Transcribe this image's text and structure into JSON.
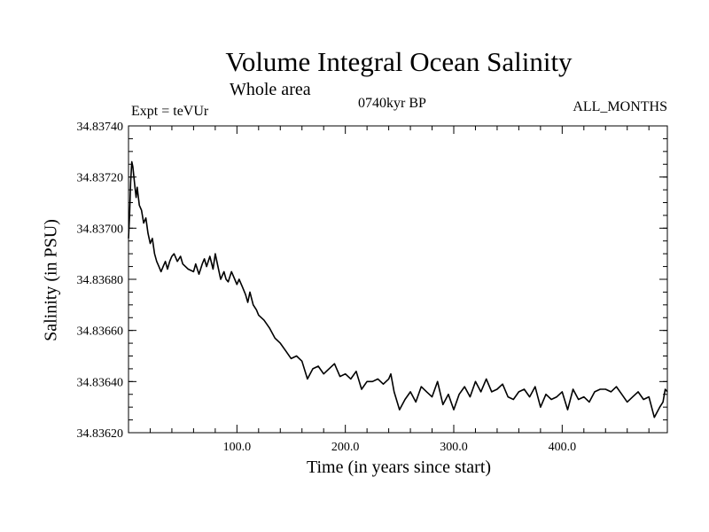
{
  "chart_data": {
    "type": "line",
    "title": "Volume Integral Ocean Salinity",
    "subtitle": "Whole area",
    "annotations": {
      "left": "Expt = teVUr",
      "center": "0740kyr BP",
      "right": "ALL_MONTHS"
    },
    "xlabel": "Time (in years since start)",
    "ylabel": "Salinity (in PSU)",
    "xlim": [
      0,
      497
    ],
    "ylim": [
      34.8362,
      34.8374
    ],
    "x_ticks": [
      {
        "value": 100,
        "label": "100.0"
      },
      {
        "value": 200,
        "label": "200.0"
      },
      {
        "value": 300,
        "label": "300.0"
      },
      {
        "value": 400,
        "label": "400.0"
      }
    ],
    "y_ticks": [
      {
        "value": 34.8362,
        "label": "34.83620"
      },
      {
        "value": 34.8364,
        "label": "34.83640"
      },
      {
        "value": 34.8366,
        "label": "34.83660"
      },
      {
        "value": 34.8368,
        "label": "34.83680"
      },
      {
        "value": 34.837,
        "label": "34.83700"
      },
      {
        "value": 34.8372,
        "label": "34.83720"
      },
      {
        "value": 34.8374,
        "label": "34.83740"
      }
    ],
    "grid": false,
    "line_color": "#000000",
    "series": [
      {
        "x": [
          0,
          1,
          2,
          3,
          4,
          5,
          6,
          7,
          8,
          10,
          12,
          14,
          16,
          18,
          20,
          22,
          24,
          26,
          28,
          30,
          32,
          34,
          36,
          38,
          40,
          42,
          45,
          48,
          50,
          55,
          60,
          62,
          65,
          68,
          70,
          72,
          75,
          78,
          80,
          82,
          85,
          88,
          90,
          92,
          95,
          98,
          100,
          102,
          105,
          108,
          110,
          112,
          115,
          118,
          120,
          125,
          130,
          135,
          140,
          145,
          150,
          155,
          160,
          165,
          170,
          175,
          180,
          185,
          190,
          195,
          200,
          205,
          210,
          215,
          220,
          225,
          230,
          235,
          240,
          242,
          245,
          250,
          255,
          260,
          265,
          270,
          275,
          280,
          285,
          290,
          295,
          300,
          305,
          310,
          315,
          320,
          325,
          330,
          335,
          340,
          345,
          350,
          355,
          360,
          365,
          370,
          375,
          380,
          385,
          390,
          395,
          400,
          405,
          410,
          415,
          420,
          425,
          430,
          435,
          440,
          445,
          450,
          455,
          460,
          465,
          470,
          475,
          480,
          485,
          490,
          493,
          495,
          497
        ],
        "y": [
          34.83696,
          34.83705,
          34.83718,
          34.83726,
          34.83724,
          34.8372,
          34.83716,
          34.83712,
          34.83716,
          34.83709,
          34.83707,
          34.83702,
          34.83704,
          34.83698,
          34.83694,
          34.83696,
          34.8369,
          34.83687,
          34.83685,
          34.83683,
          34.83685,
          34.83687,
          34.83684,
          34.83687,
          34.83689,
          34.8369,
          34.83687,
          34.83689,
          34.83686,
          34.83684,
          34.83683,
          34.83686,
          34.83682,
          34.83686,
          34.83688,
          34.83685,
          34.83689,
          34.83684,
          34.8369,
          34.83686,
          34.8368,
          34.83683,
          34.8368,
          34.83679,
          34.83683,
          34.8368,
          34.83678,
          34.8368,
          34.83677,
          34.83674,
          34.83671,
          34.83675,
          34.8367,
          34.83668,
          34.83666,
          34.83664,
          34.83661,
          34.83657,
          34.83655,
          34.83652,
          34.83649,
          34.8365,
          34.83648,
          34.83641,
          34.83645,
          34.83646,
          34.83643,
          34.83645,
          34.83647,
          34.83642,
          34.83643,
          34.83641,
          34.83644,
          34.83637,
          34.8364,
          34.8364,
          34.83641,
          34.83639,
          34.83641,
          34.83643,
          34.83636,
          34.83629,
          34.83633,
          34.83636,
          34.83632,
          34.83638,
          34.83636,
          34.83634,
          34.8364,
          34.83631,
          34.83635,
          34.83629,
          34.83635,
          34.83638,
          34.83634,
          34.8364,
          34.83636,
          34.83641,
          34.83636,
          34.83637,
          34.83639,
          34.83634,
          34.83633,
          34.83636,
          34.83637,
          34.83634,
          34.83638,
          34.8363,
          34.83635,
          34.83633,
          34.83634,
          34.83636,
          34.83629,
          34.83637,
          34.83633,
          34.83634,
          34.83632,
          34.83636,
          34.83637,
          34.83637,
          34.83636,
          34.83638,
          34.83635,
          34.83632,
          34.83634,
          34.83636,
          34.83633,
          34.83634,
          34.83626,
          34.8363,
          34.83632,
          34.83637,
          34.83636
        ]
      }
    ]
  }
}
